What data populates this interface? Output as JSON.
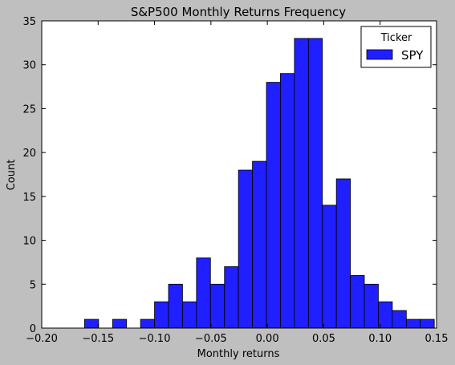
{
  "chart_data": {
    "type": "bar",
    "title": "S&P500 Monthly Returns Frequency",
    "xlabel": "Monthly returns",
    "ylabel": "Count",
    "xlim": [
      -0.2,
      0.15
    ],
    "ylim": [
      0,
      35
    ],
    "xticks": [
      -0.2,
      -0.15,
      -0.1,
      -0.05,
      0.0,
      0.05,
      0.1,
      0.15
    ],
    "xtick_labels": [
      "−0.20",
      "−0.15",
      "−0.10",
      "−0.05",
      "0.00",
      "0.05",
      "0.10",
      "0.15"
    ],
    "yticks": [
      0,
      5,
      10,
      15,
      20,
      25,
      30,
      35
    ],
    "ytick_labels": [
      "0",
      "5",
      "10",
      "15",
      "20",
      "25",
      "30",
      "35"
    ],
    "grid": false,
    "legend": {
      "title": "Ticker",
      "placement": "top-right"
    },
    "bin_width": 0.0124,
    "series": [
      {
        "name": "SPY",
        "color": "#1f1fff",
        "bin_edges": [
          -0.162,
          -0.1496,
          -0.1372,
          -0.1248,
          -0.1124,
          -0.1,
          -0.0876,
          -0.0752,
          -0.0628,
          -0.0504,
          -0.038,
          -0.0256,
          -0.0132,
          -0.0008,
          0.0116,
          0.024,
          0.0364,
          0.0488,
          0.0612,
          0.0736,
          0.086,
          0.0984,
          0.1108,
          0.1232,
          0.1356
        ],
        "counts": [
          1,
          0,
          1,
          0,
          1,
          3,
          5,
          3,
          8,
          5,
          7,
          18,
          19,
          28,
          29,
          33,
          33,
          14,
          17,
          6,
          5,
          3,
          2,
          1,
          1
        ]
      }
    ]
  }
}
